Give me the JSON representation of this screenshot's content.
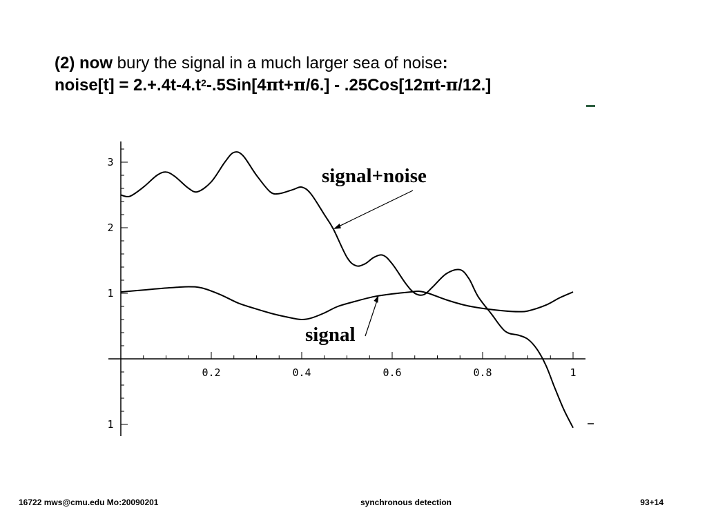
{
  "slide": {
    "heading_line1": {
      "part1": "(2) now",
      "part2": " bury the signal in a much larger sea of noise",
      "part3": ":"
    },
    "heading_line2": {
      "a": "noise[t] = 2.+.4t-4.t",
      "sup": "2",
      "b": "-.5Sin[4",
      "pi1": "π",
      "c": "t+",
      "pi2": "π",
      "d": "/6.] - .25Cos[12",
      "pi3": "π",
      "e": "t-",
      "pi4": "π",
      "f": "/12.]"
    }
  },
  "chart_data": {
    "type": "line",
    "xlim": [
      0,
      1
    ],
    "ylim": [
      -1,
      3.2
    ],
    "x_tick_labels": [
      "0.2",
      "0.4",
      "0.6",
      "0.8",
      "1"
    ],
    "y_tick_labels": [
      "3",
      "2",
      "1",
      "1"
    ],
    "annotations": [
      {
        "text": "signal+noise",
        "points_to": {
          "x": 0.47,
          "y": 1.98
        }
      },
      {
        "text": "signal",
        "points_to": {
          "x": 0.57,
          "y": 0.97
        }
      }
    ],
    "series": [
      {
        "name": "signal+noise",
        "x": [
          0.0,
          0.02,
          0.05,
          0.08,
          0.1,
          0.12,
          0.15,
          0.17,
          0.2,
          0.23,
          0.25,
          0.27,
          0.3,
          0.33,
          0.35,
          0.38,
          0.4,
          0.42,
          0.45,
          0.47,
          0.5,
          0.52,
          0.54,
          0.56,
          0.58,
          0.6,
          0.63,
          0.65,
          0.67,
          0.69,
          0.72,
          0.75,
          0.77,
          0.79,
          0.82,
          0.85,
          0.88,
          0.9,
          0.92,
          0.94,
          0.96,
          0.98,
          1.0
        ],
        "y": [
          2.5,
          2.48,
          2.62,
          2.8,
          2.85,
          2.78,
          2.6,
          2.55,
          2.7,
          3.0,
          3.15,
          3.1,
          2.8,
          2.55,
          2.52,
          2.58,
          2.62,
          2.52,
          2.2,
          1.98,
          1.55,
          1.42,
          1.45,
          1.55,
          1.58,
          1.45,
          1.15,
          1.0,
          0.98,
          1.1,
          1.3,
          1.36,
          1.22,
          0.95,
          0.68,
          0.42,
          0.36,
          0.3,
          0.15,
          -0.1,
          -0.45,
          -0.78,
          -1.05
        ]
      },
      {
        "name": "signal",
        "x": [
          0.0,
          0.05,
          0.1,
          0.15,
          0.18,
          0.22,
          0.26,
          0.3,
          0.34,
          0.38,
          0.4,
          0.42,
          0.45,
          0.48,
          0.52,
          0.56,
          0.6,
          0.64,
          0.66,
          0.68,
          0.72,
          0.76,
          0.8,
          0.85,
          0.88,
          0.9,
          0.94,
          0.97,
          1.0
        ],
        "y": [
          1.02,
          1.05,
          1.08,
          1.1,
          1.08,
          0.98,
          0.85,
          0.76,
          0.68,
          0.62,
          0.6,
          0.62,
          0.7,
          0.8,
          0.88,
          0.95,
          0.99,
          1.02,
          1.03,
          1.0,
          0.9,
          0.82,
          0.77,
          0.73,
          0.72,
          0.73,
          0.82,
          0.93,
          1.02
        ]
      }
    ]
  },
  "footer": {
    "left": "16722 mws@cmu.edu  Mo:20090201",
    "center": "synchronous detection",
    "right": "93+14"
  }
}
